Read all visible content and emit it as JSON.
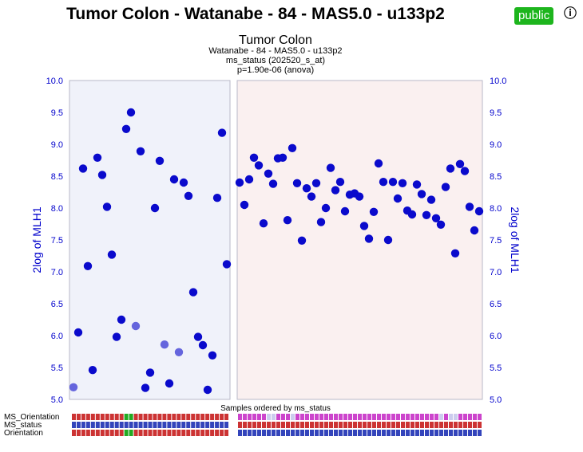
{
  "header": {
    "title": "Tumor Colon - Watanabe - 84 - MAS5.0 - u133p2",
    "badge": "public",
    "info_icon": "info-icon"
  },
  "colors": {
    "point": "#0a0acc",
    "point_faded": "#6565dd",
    "axis_text": "#0000cc",
    "group1_bg": "#f0f2fa",
    "group2_bg": "#faf0f0",
    "track_red": "#cc3333",
    "track_blue": "#3344bb",
    "track_green": "#22aa22",
    "track_magenta": "#cc44cc",
    "track_pale": "#ccccee"
  },
  "chart_data": {
    "type": "scatter",
    "title": "Tumor Colon",
    "subtitle_lines": [
      "Watanabe - 84 - MAS5.0 - u133p2",
      "ms_status (202520_s_at)",
      "p=1.90e-06 (anova)"
    ],
    "ylabel_left": "2log of MLH1",
    "ylabel_right": "2log of MLH1",
    "xlabel": "Samples ordered by ms_status",
    "ylim": [
      5.0,
      10.0
    ],
    "yticks": [
      "5.0",
      "5.5",
      "6.0",
      "6.5",
      "7.0",
      "7.5",
      "8.0",
      "8.5",
      "9.0",
      "9.5",
      "10.0"
    ],
    "groups": [
      {
        "values": [
          5.19,
          6.05,
          8.62,
          7.09,
          5.46,
          8.79,
          8.52,
          8.02,
          7.27,
          5.98,
          6.25,
          9.24,
          9.5,
          6.15,
          8.89,
          5.18,
          5.42,
          8.0,
          8.74,
          5.86,
          5.25,
          8.45,
          5.74,
          8.4,
          8.19,
          6.68,
          5.98,
          5.85,
          5.15,
          5.69,
          8.16,
          9.18,
          7.12
        ],
        "faded": [
          0,
          13,
          19,
          22
        ]
      },
      {
        "values": [
          8.4,
          8.05,
          8.45,
          8.79,
          8.67,
          7.76,
          8.54,
          8.38,
          8.78,
          8.79,
          7.81,
          8.94,
          8.39,
          7.49,
          8.31,
          8.18,
          8.39,
          7.78,
          8.0,
          8.63,
          8.28,
          8.41,
          7.95,
          8.21,
          8.23,
          8.18,
          7.72,
          7.52,
          7.94,
          8.7,
          8.41,
          7.5,
          8.41,
          8.15,
          8.39,
          7.96,
          7.9,
          8.37,
          8.22,
          7.89,
          8.13,
          7.84,
          7.74,
          8.33,
          8.62,
          7.29,
          8.69,
          8.58,
          8.02,
          7.65,
          7.95
        ],
        "faded": []
      }
    ],
    "tracks": [
      {
        "label": "MS_Orientation",
        "g1": "RRRRRRRRRRRGGRRRRRRRRRRRRRRRRRRRR",
        "g2": "MMMMMMPPMMMPMMMMMMMMMMMMMMMMMMMMMMMMMMMMMMPMPPMMMMM"
      },
      {
        "label": "MS_status",
        "g1": "BBBBBBBBBBBBBBBBBBBBBBBBBBBBBBBBB",
        "g2": "RRRRRRRRRRRRRRRRRRRRRRRRRRRRRRRRRRRRRRRRRRRRRRRRRRR"
      },
      {
        "label": "Orientation",
        "g1": "RRRRRRRRRRRGGRRRRRRRRRRRRRRRRRRRR",
        "g2": "BBBBBBBBBBBBBBBBBBBBBBBBBBBBBBBBBBBBBBBBBBBBBBBBBBB"
      }
    ]
  }
}
